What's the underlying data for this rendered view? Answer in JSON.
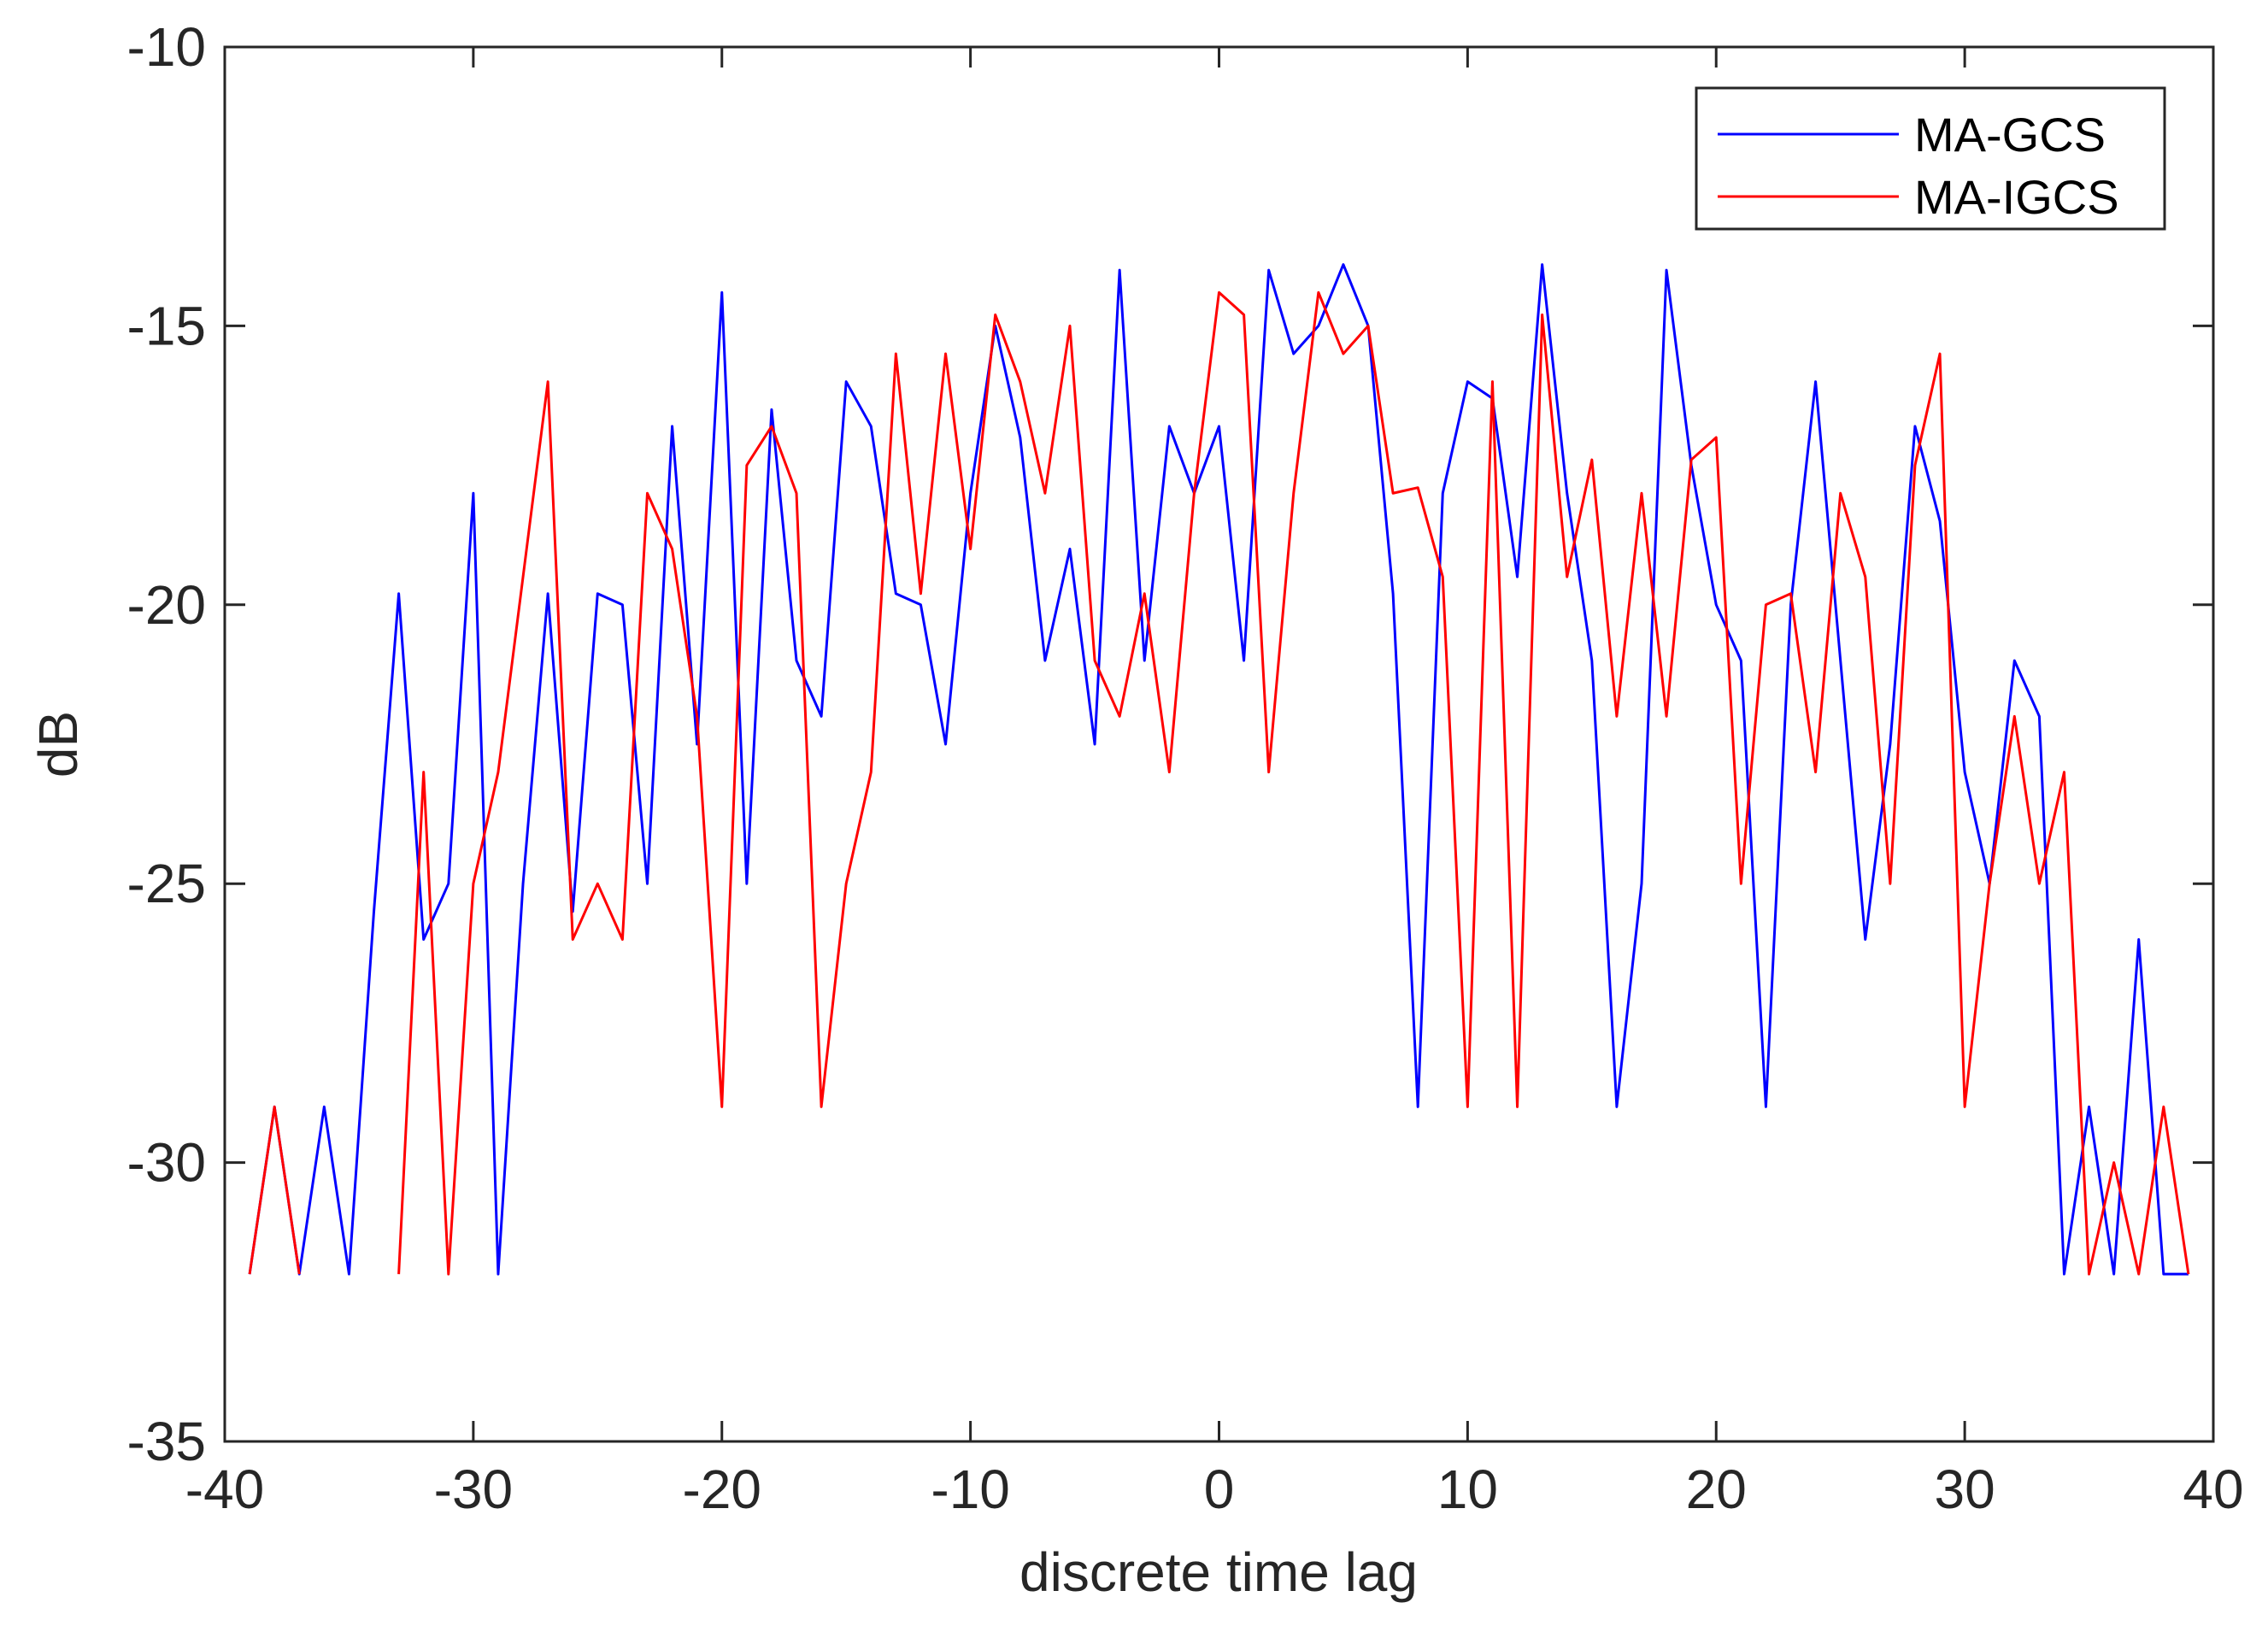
{
  "chart_data": {
    "type": "line",
    "title": "",
    "xlabel": "discrete time lag",
    "ylabel": "dB",
    "xlim": [
      -40,
      40
    ],
    "ylim": [
      -35,
      -10
    ],
    "xticks": [
      -40,
      -30,
      -20,
      -10,
      0,
      10,
      20,
      30,
      40
    ],
    "yticks": [
      -10,
      -15,
      -20,
      -25,
      -30,
      -35
    ],
    "grid": false,
    "legend_position": "top-right",
    "x": [
      -39,
      -38,
      -37,
      -36,
      -35,
      -34,
      -33,
      -32,
      -31,
      -30,
      -29,
      -28,
      -27,
      -26,
      -25,
      -24,
      -23,
      -22,
      -21,
      -20,
      -19,
      -18,
      -17,
      -16,
      -15,
      -14,
      -13,
      -12,
      -11,
      -10,
      -9,
      -8,
      -7,
      -6,
      -5,
      -4,
      -3,
      -2,
      -1,
      0,
      1,
      2,
      3,
      4,
      5,
      6,
      7,
      8,
      9,
      10,
      11,
      12,
      13,
      14,
      15,
      16,
      17,
      18,
      19,
      20,
      21,
      22,
      23,
      24,
      25,
      26,
      27,
      28,
      29,
      30,
      31,
      32,
      33,
      34,
      35,
      36,
      37,
      38,
      39
    ],
    "series": [
      {
        "name": "MA-GCS",
        "color": "#0000ff",
        "values": [
          -32,
          -29,
          -32,
          -29,
          -32,
          -25.5,
          -19.8,
          -26,
          -25,
          -18,
          -32,
          -25,
          -19.8,
          -25.5,
          -19.8,
          -20,
          -25,
          -16.8,
          -22.5,
          -14.4,
          -25,
          -16.5,
          -21,
          -22,
          -16,
          -16.8,
          -19.8,
          -20,
          -22.5,
          -18,
          -15,
          -17,
          -21,
          -19,
          -22.5,
          -14,
          -21,
          -16.8,
          -18,
          -16.8,
          -21,
          -14,
          -15.5,
          -15,
          -13.9,
          -15,
          -19.8,
          -29,
          -18,
          -16,
          -16.3,
          -19.5,
          -13.9,
          -18,
          -21,
          -29,
          -25,
          -14,
          -17.5,
          -20,
          -21,
          -29,
          -20,
          -16,
          -21,
          -26,
          -22.5,
          -16.8,
          -18.5,
          -23,
          -25,
          -21,
          -22,
          -32,
          -29,
          -32,
          -26,
          -32,
          -32
        ]
      },
      {
        "name": "MA-IGCS",
        "color": "#ff0000",
        "values": [
          -32,
          -29,
          -32,
          null,
          null,
          null,
          -32,
          -23,
          -32,
          -25,
          -23,
          -19.5,
          -16,
          -26,
          -25,
          -26,
          -18,
          -19,
          -22,
          -29,
          -17.5,
          -16.8,
          -18,
          -29,
          -25,
          -23,
          -15.5,
          -19.8,
          -15.5,
          -19,
          -14.8,
          -16,
          -18,
          -15,
          -21,
          -22,
          -19.8,
          -23,
          -18,
          -14.4,
          -14.8,
          -23,
          -18,
          -14.4,
          -15.5,
          -15,
          -18,
          -17.9,
          -19.5,
          -29,
          -16,
          -29,
          -14.8,
          -19.5,
          -17.4,
          -22,
          -18,
          -22,
          -17.4,
          -17,
          -25,
          -20,
          -19.8,
          -23,
          -18,
          -19.5,
          -25,
          -17.5,
          -15.5,
          -29,
          -25,
          -22,
          -25,
          -23,
          -32,
          -30,
          -32,
          -29,
          -32
        ]
      }
    ]
  }
}
